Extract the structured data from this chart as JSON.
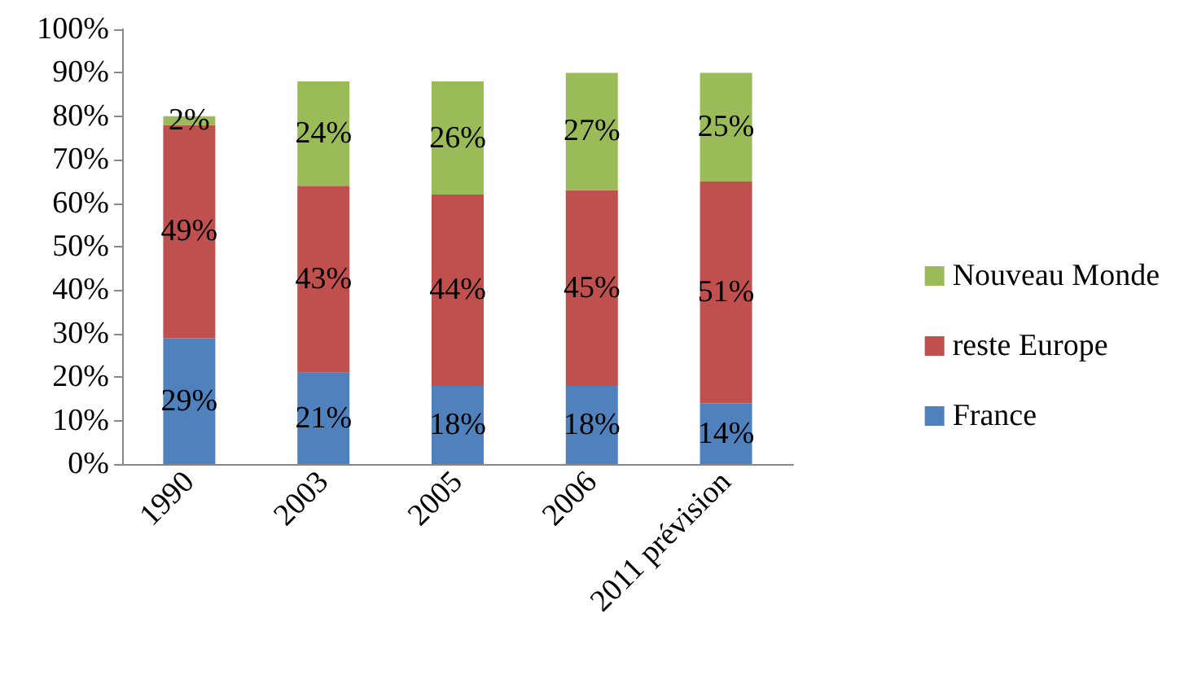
{
  "chart_data": {
    "type": "bar",
    "stacked": true,
    "categories": [
      "1990",
      "2003",
      "2005",
      "2006",
      "2011 prévision"
    ],
    "series": [
      {
        "name": "France",
        "color": "#4f81bd",
        "values": [
          29,
          21,
          18,
          18,
          14
        ],
        "value_labels": [
          "29%",
          "21%",
          "18%",
          "18%",
          "14%"
        ]
      },
      {
        "name": "reste Europe",
        "color": "#c0504d",
        "values": [
          49,
          43,
          44,
          45,
          51
        ],
        "value_labels": [
          "49%",
          "43%",
          "44%",
          "45%",
          "51%"
        ]
      },
      {
        "name": "Nouveau Monde",
        "color": "#9bbb59",
        "values": [
          2,
          24,
          26,
          27,
          25
        ],
        "value_labels": [
          "2%",
          "24%",
          "26%",
          "27%",
          "25%"
        ]
      }
    ],
    "ylim": [
      0,
      100
    ],
    "yticks": [
      {
        "value": 0,
        "label": "0%"
      },
      {
        "value": 10,
        "label": "10%"
      },
      {
        "value": 20,
        "label": "20%"
      },
      {
        "value": 30,
        "label": "30%"
      },
      {
        "value": 40,
        "label": "40%"
      },
      {
        "value": 50,
        "label": "50%"
      },
      {
        "value": 60,
        "label": "60%"
      },
      {
        "value": 70,
        "label": "70%"
      },
      {
        "value": 80,
        "label": "80%"
      },
      {
        "value": 90,
        "label": "90%"
      },
      {
        "value": 100,
        "label": "100%"
      }
    ],
    "grid": false,
    "legend": "right"
  }
}
